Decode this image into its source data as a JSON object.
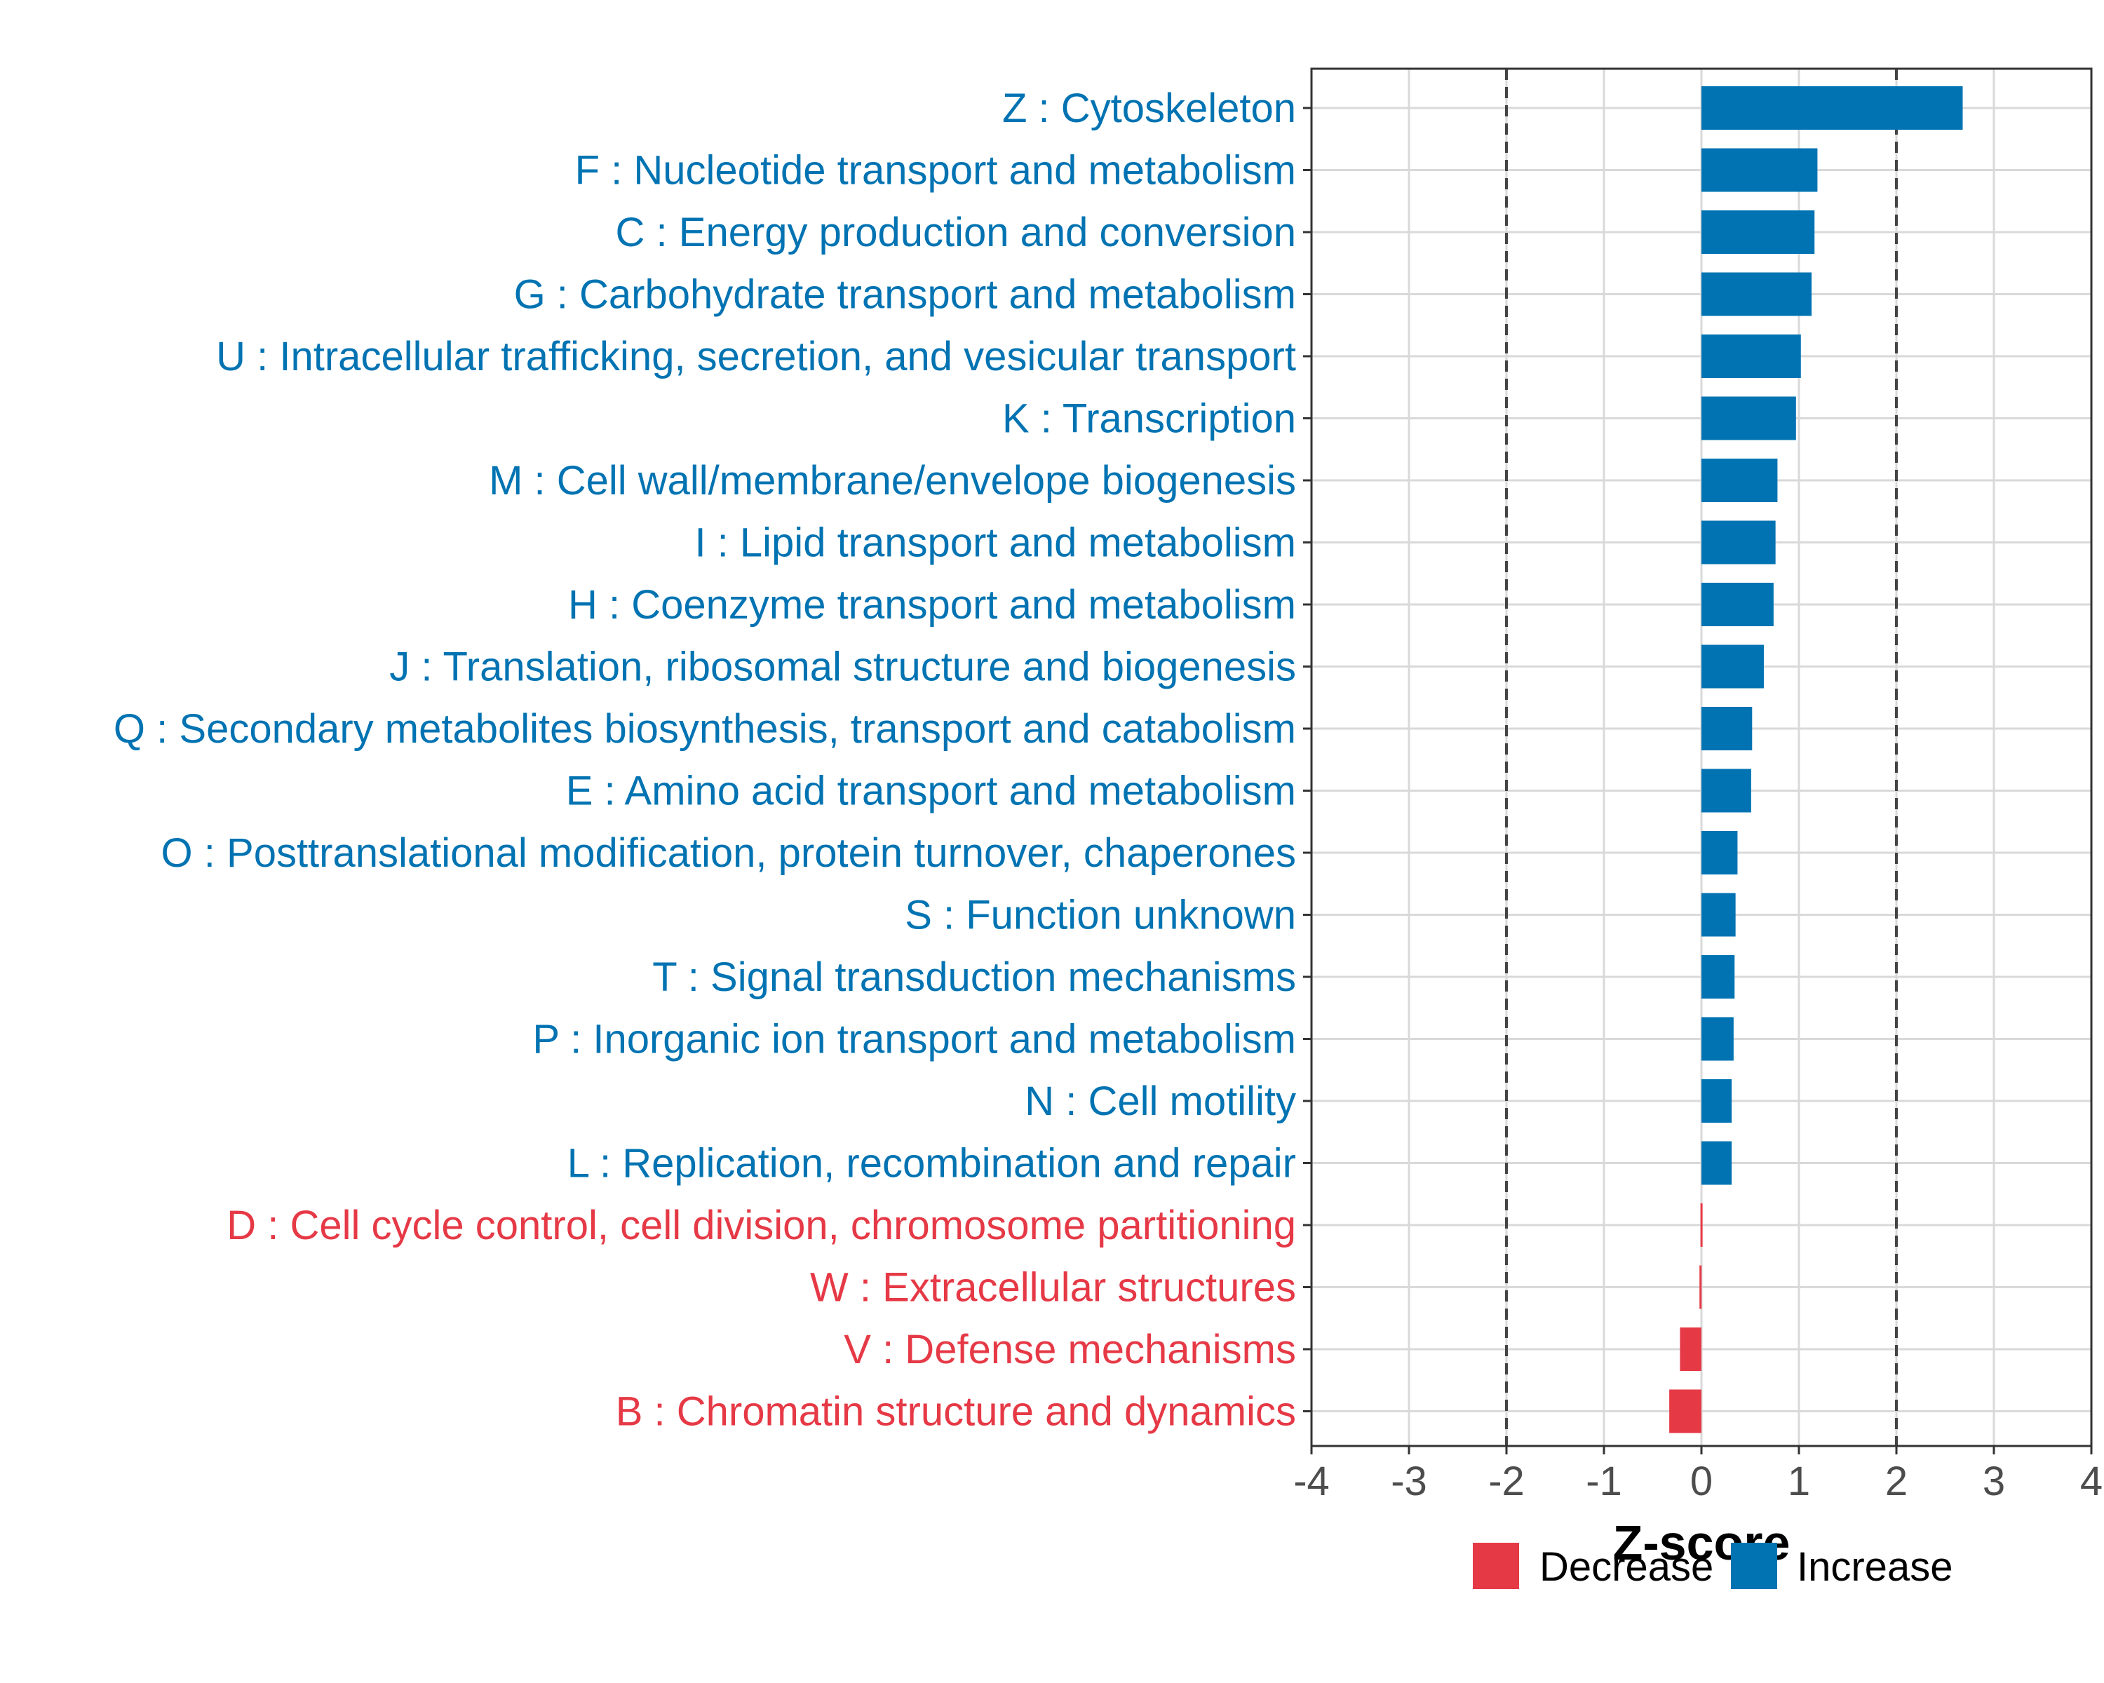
{
  "colors": {
    "increase": "#0173B2",
    "decrease": "#E63946",
    "grid": "#d9d9d9",
    "panel_border": "#333333",
    "reference_line": "#444444"
  },
  "chart_data": {
    "type": "bar",
    "orientation": "horizontal",
    "xlabel": "Z-score",
    "xlim": [
      -4,
      4
    ],
    "x_ticks": [
      "-4",
      "-3",
      "-2",
      "-1",
      "0",
      "1",
      "2",
      "3",
      "4"
    ],
    "grid": true,
    "reference_lines": [
      -2,
      2
    ],
    "legend_position": "bottom",
    "legend": [
      {
        "key": "decrease",
        "label": "Decrease"
      },
      {
        "key": "increase",
        "label": "Increase"
      }
    ],
    "categories": [
      "Z : Cytoskeleton",
      "F : Nucleotide transport and metabolism",
      "C : Energy production and conversion",
      "G : Carbohydrate transport and metabolism",
      "U : Intracellular trafficking, secretion, and vesicular transport",
      "K : Transcription",
      "M : Cell wall/membrane/envelope biogenesis",
      "I : Lipid transport and metabolism",
      "H : Coenzyme transport and metabolism",
      "J : Translation, ribosomal structure and biogenesis",
      "Q : Secondary metabolites biosynthesis, transport and catabolism",
      "E : Amino acid transport and metabolism",
      "O : Posttranslational modification, protein turnover, chaperones",
      "S : Function unknown",
      "T : Signal transduction mechanisms",
      "P : Inorganic ion transport and metabolism",
      "N : Cell motility",
      "L : Replication, recombination and repair",
      "D : Cell cycle control, cell division, chromosome partitioning",
      "W : Extracellular structures",
      "V : Defense mechanisms",
      "B : Chromatin structure and dynamics"
    ],
    "values": [
      2.68,
      1.19,
      1.16,
      1.13,
      1.02,
      0.97,
      0.78,
      0.76,
      0.74,
      0.64,
      0.52,
      0.51,
      0.37,
      0.35,
      0.34,
      0.33,
      0.31,
      0.31,
      -0.01,
      -0.02,
      -0.22,
      -0.33
    ],
    "direction": [
      "increase",
      "increase",
      "increase",
      "increase",
      "increase",
      "increase",
      "increase",
      "increase",
      "increase",
      "increase",
      "increase",
      "increase",
      "increase",
      "increase",
      "increase",
      "increase",
      "increase",
      "increase",
      "decrease",
      "decrease",
      "decrease",
      "decrease"
    ]
  }
}
